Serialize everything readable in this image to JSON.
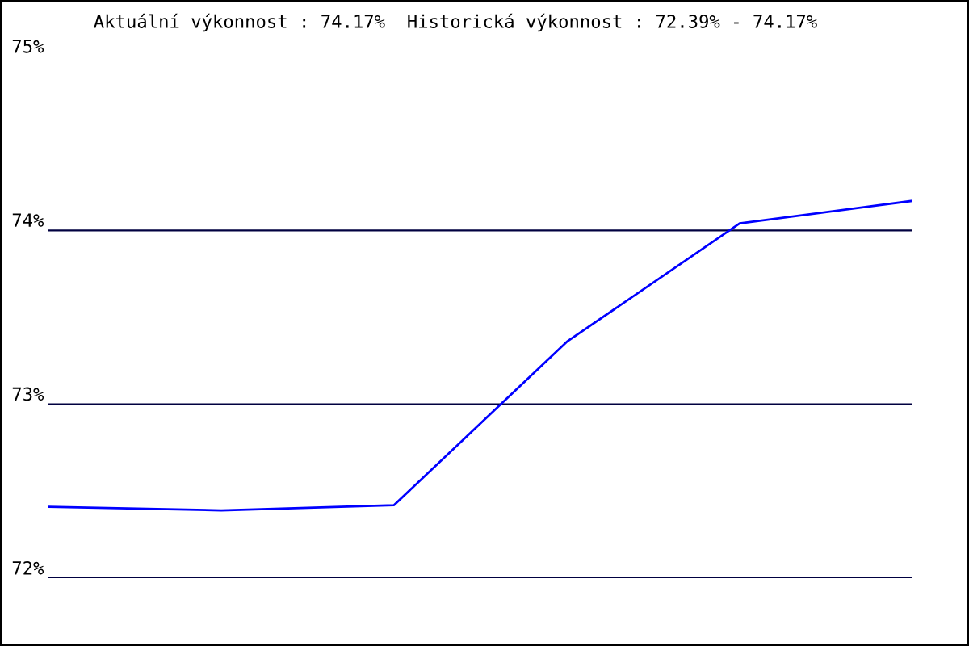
{
  "chart_data": {
    "type": "line",
    "title": "Aktuální výkonnost : 74.17%  Historická výkonnost : 72.39% - 74.17%",
    "categories": [
      null,
      null,
      null,
      null,
      null,
      null
    ],
    "series": [
      {
        "color": "#0000ff",
        "values": [
          72.41,
          72.39,
          72.42,
          73.36,
          74.04,
          74.17
        ]
      }
    ],
    "ylim": [
      72,
      75
    ],
    "yticks": [
      {
        "value": 72,
        "label": "72%"
      },
      {
        "value": 73,
        "label": "73%"
      },
      {
        "value": 74,
        "label": "74%"
      },
      {
        "value": 75,
        "label": "75%"
      }
    ],
    "grid": "y",
    "marker": "none",
    "line_style": "solid"
  }
}
